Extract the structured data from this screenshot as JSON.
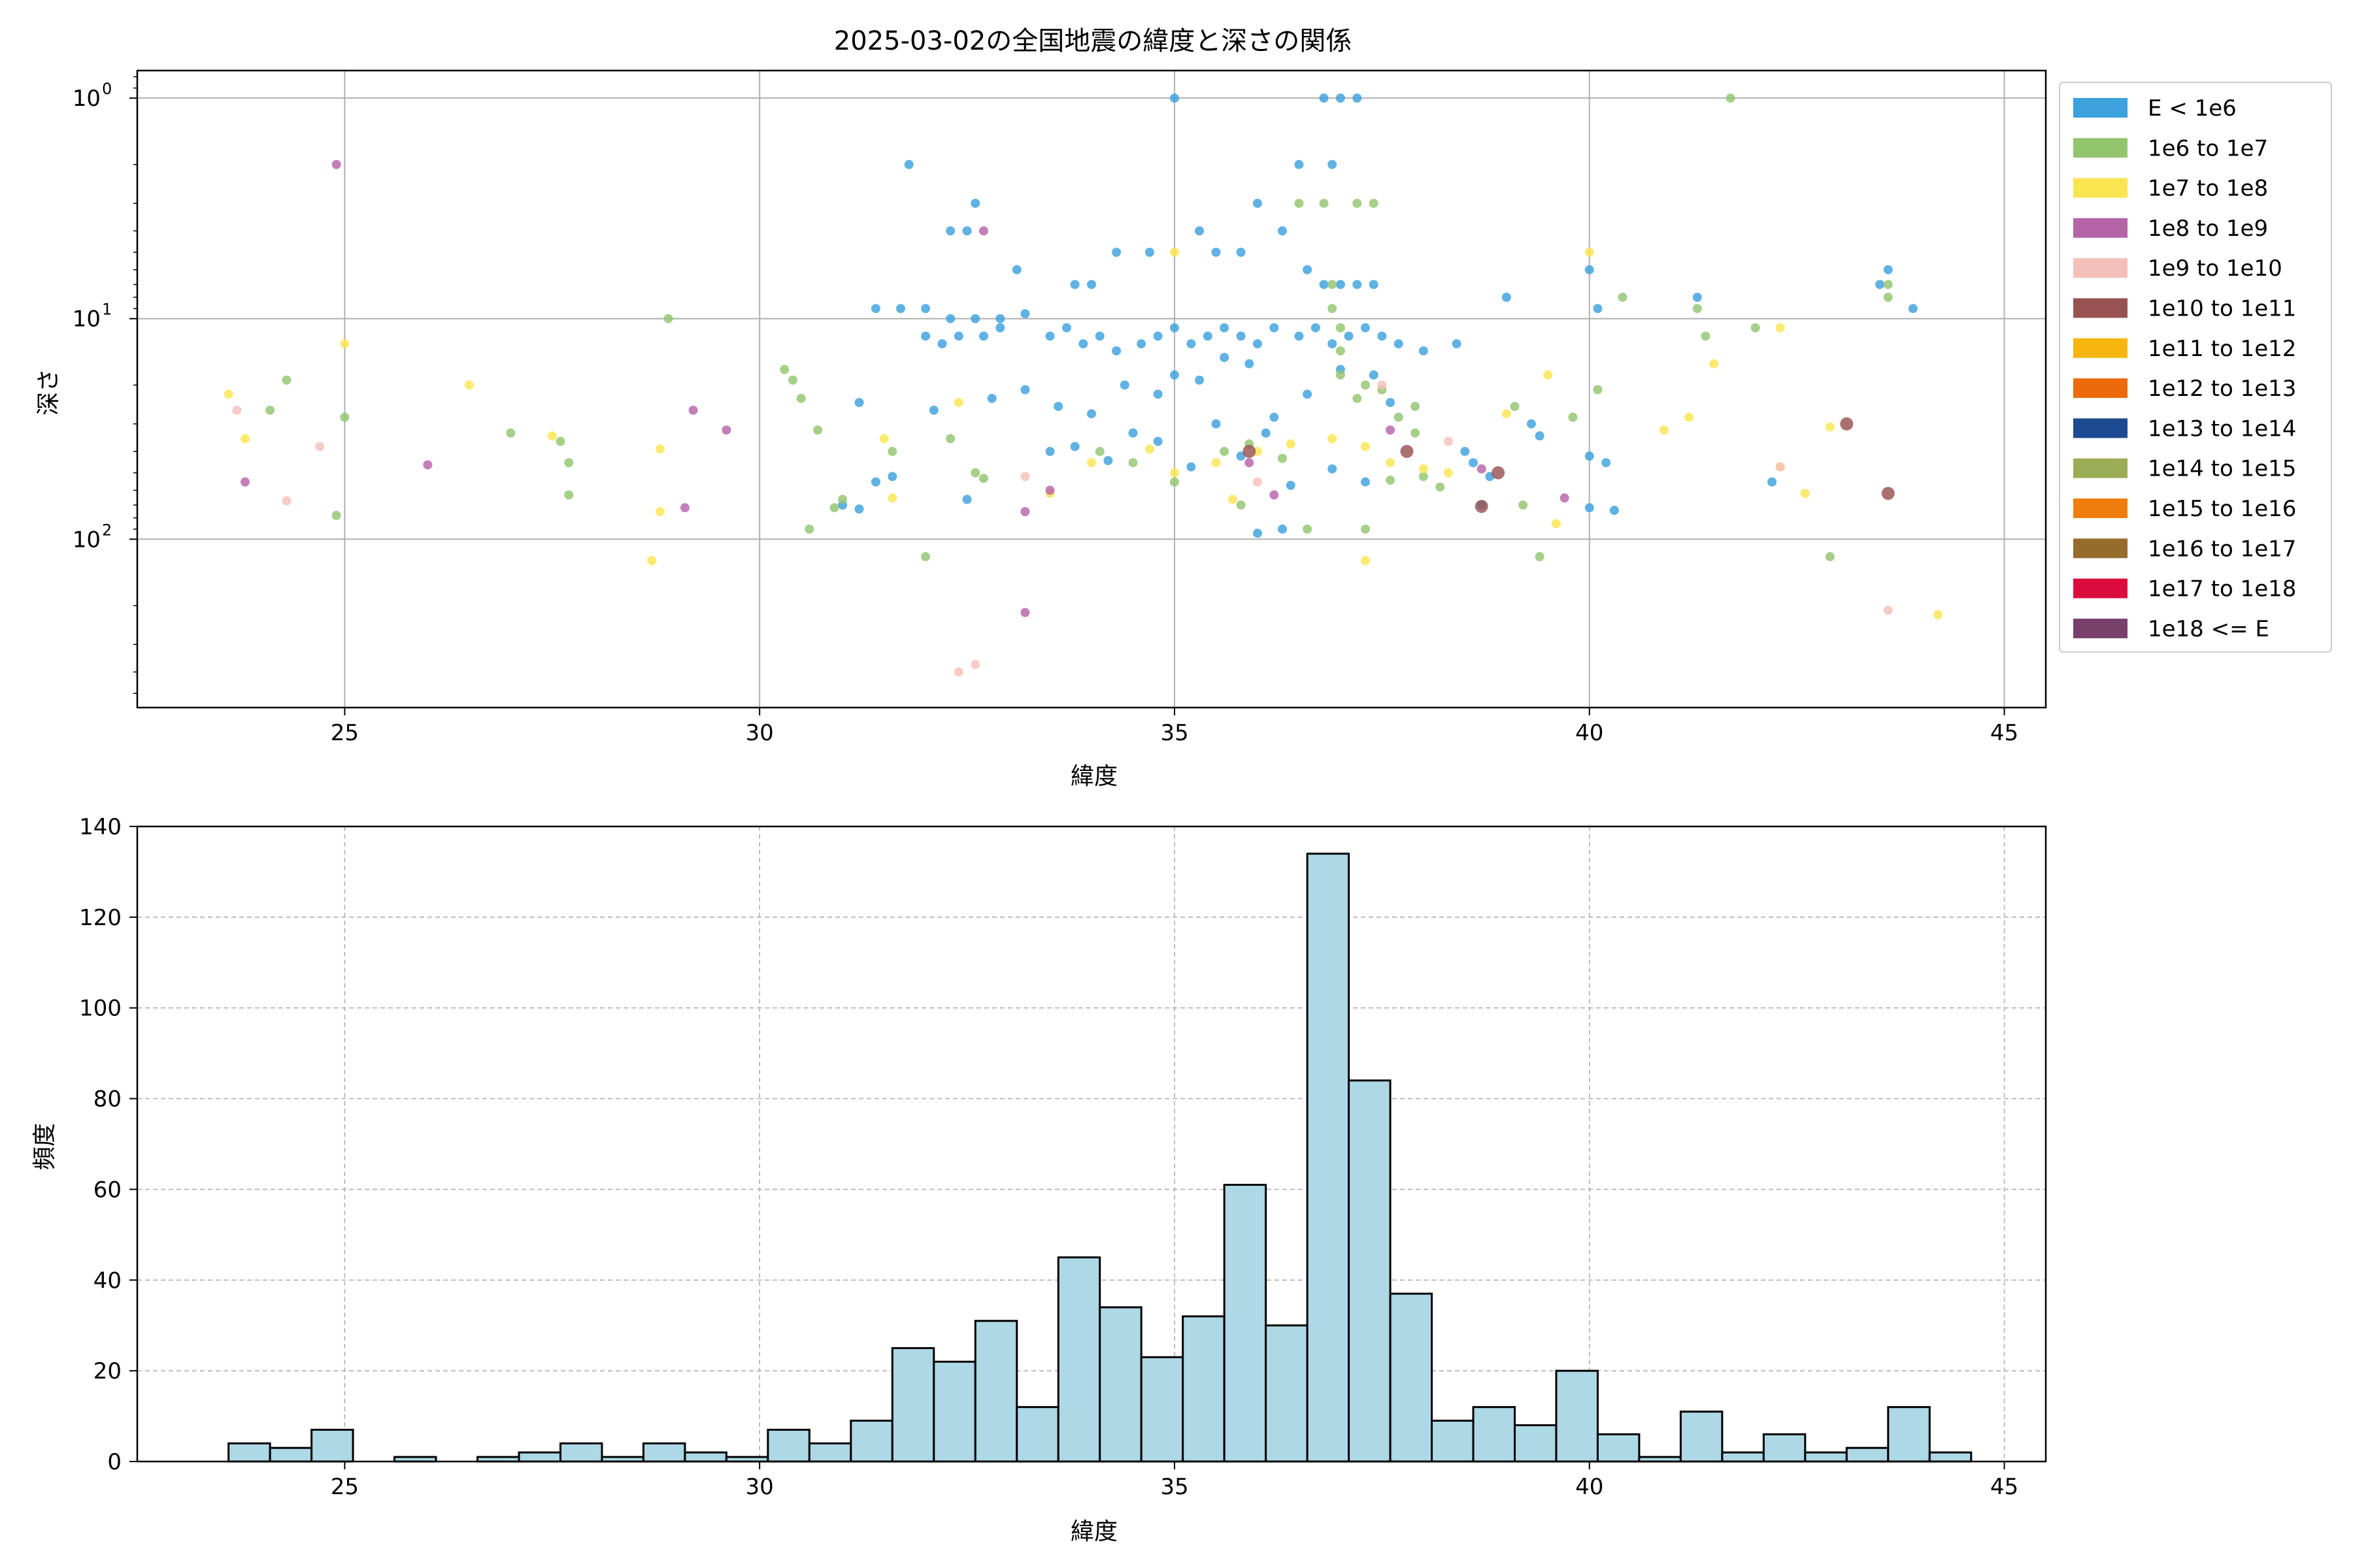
{
  "figure": {
    "title": "2025-03-02の全国地震の緯度と深さの関係"
  },
  "chart_data": [
    {
      "type": "scatter",
      "title": "2025-03-02の全国地震の緯度と深さの関係",
      "xlabel": "緯度",
      "ylabel": "深さ",
      "xlim": [
        22.5,
        45.5
      ],
      "ylim": [
        580,
        0.75
      ],
      "y_scale": "log",
      "y_inverted": true,
      "grid": true,
      "x_ticks": [
        "25",
        "30",
        "35",
        "40",
        "45"
      ],
      "y_ticks": [
        {
          "value": 1,
          "base": "10",
          "exp": "0"
        },
        {
          "value": 10,
          "base": "10",
          "exp": "1"
        },
        {
          "value": 100,
          "base": "10",
          "exp": "2"
        }
      ],
      "legend_position": "outside-right",
      "series": [
        {
          "name": "E < 1e6",
          "color": "#3ca1dd",
          "points": [
            [
              31.8,
              2
            ],
            [
              32.3,
              4
            ],
            [
              32.5,
              4
            ],
            [
              32.6,
              3
            ],
            [
              33.1,
              6
            ],
            [
              31.4,
              9
            ],
            [
              31.7,
              9
            ],
            [
              32.0,
              9
            ],
            [
              32.3,
              10
            ],
            [
              32.6,
              10
            ],
            [
              32.9,
              10
            ],
            [
              33.2,
              9.5
            ],
            [
              33.8,
              7
            ],
            [
              34.0,
              7
            ],
            [
              34.3,
              5
            ],
            [
              34.7,
              5
            ],
            [
              35.0,
              1
            ],
            [
              35.3,
              4
            ],
            [
              35.5,
              5
            ],
            [
              35.8,
              5
            ],
            [
              36.0,
              3
            ],
            [
              36.3,
              4
            ],
            [
              36.5,
              2
            ],
            [
              36.8,
              1
            ],
            [
              37.0,
              1
            ],
            [
              37.2,
              1
            ],
            [
              36.9,
              2
            ],
            [
              36.6,
              6
            ],
            [
              36.8,
              7
            ],
            [
              37.0,
              7
            ],
            [
              37.2,
              7
            ],
            [
              37.4,
              7
            ],
            [
              32.0,
              12
            ],
            [
              32.2,
              13
            ],
            [
              32.4,
              12
            ],
            [
              32.7,
              12
            ],
            [
              32.9,
              11
            ],
            [
              33.5,
              12
            ],
            [
              33.7,
              11
            ],
            [
              33.9,
              13
            ],
            [
              34.1,
              12
            ],
            [
              34.3,
              14
            ],
            [
              34.6,
              13
            ],
            [
              34.8,
              12
            ],
            [
              35.0,
              11
            ],
            [
              35.2,
              13
            ],
            [
              35.4,
              12
            ],
            [
              35.6,
              11
            ],
            [
              35.8,
              12
            ],
            [
              36.0,
              13
            ],
            [
              36.2,
              11
            ],
            [
              36.5,
              12
            ],
            [
              36.7,
              11
            ],
            [
              36.9,
              13
            ],
            [
              37.1,
              12
            ],
            [
              37.3,
              11
            ],
            [
              37.5,
              12
            ],
            [
              37.7,
              13
            ],
            [
              38.0,
              14
            ],
            [
              38.4,
              13
            ],
            [
              39.0,
              8
            ],
            [
              40.0,
              6
            ],
            [
              40.1,
              9
            ],
            [
              41.3,
              8
            ],
            [
              43.6,
              6
            ],
            [
              43.9,
              9
            ],
            [
              31.2,
              24
            ],
            [
              32.1,
              26
            ],
            [
              32.8,
              23
            ],
            [
              33.2,
              21
            ],
            [
              33.6,
              25
            ],
            [
              34.0,
              27
            ],
            [
              34.4,
              20
            ],
            [
              34.8,
              22
            ],
            [
              35.0,
              18
            ],
            [
              35.3,
              19
            ],
            [
              35.6,
              15
            ],
            [
              35.9,
              16
            ],
            [
              36.2,
              28
            ],
            [
              36.6,
              22
            ],
            [
              37.0,
              17
            ],
            [
              37.4,
              18
            ],
            [
              37.6,
              24
            ],
            [
              38.5,
              40
            ],
            [
              38.6,
              45
            ],
            [
              39.3,
              30
            ],
            [
              39.4,
              34
            ],
            [
              40.0,
              42
            ],
            [
              40.2,
              45
            ],
            [
              40.3,
              74
            ],
            [
              31.0,
              70
            ],
            [
              31.4,
              55
            ],
            [
              32.5,
              66
            ],
            [
              33.5,
              40
            ],
            [
              33.8,
              38
            ],
            [
              34.2,
              44
            ],
            [
              34.5,
              33
            ],
            [
              34.8,
              36
            ],
            [
              35.2,
              47
            ],
            [
              35.5,
              30
            ],
            [
              35.8,
              42
            ],
            [
              36.1,
              33
            ],
            [
              36.4,
              57
            ],
            [
              36.9,
              48
            ],
            [
              37.3,
              55
            ],
            [
              38.8,
              52
            ],
            [
              42.2,
              55
            ],
            [
              43.5,
              7
            ],
            [
              36.0,
              94
            ],
            [
              36.3,
              90
            ],
            [
              38.7,
              70
            ],
            [
              40.0,
              72
            ],
            [
              31.2,
              73
            ],
            [
              31.6,
              52
            ]
          ]
        },
        {
          "name": "1e6 to 1e7",
          "color": "#93c56f",
          "points": [
            [
              24.3,
              19
            ],
            [
              24.1,
              26
            ],
            [
              25.0,
              28
            ],
            [
              24.9,
              78
            ],
            [
              28.9,
              10
            ],
            [
              27.0,
              33
            ],
            [
              27.7,
              45
            ],
            [
              27.6,
              36
            ],
            [
              27.7,
              63
            ],
            [
              30.3,
              17
            ],
            [
              30.4,
              19
            ],
            [
              30.5,
              23
            ],
            [
              30.7,
              32
            ],
            [
              30.6,
              90
            ],
            [
              31.0,
              66
            ],
            [
              30.9,
              72
            ],
            [
              32.0,
              120
            ],
            [
              31.6,
              40
            ],
            [
              32.3,
              35
            ],
            [
              32.6,
              50
            ],
            [
              32.7,
              53
            ],
            [
              34.1,
              40
            ],
            [
              34.5,
              45
            ],
            [
              35.0,
              55
            ],
            [
              35.6,
              40
            ],
            [
              35.9,
              37
            ],
            [
              36.3,
              43
            ],
            [
              36.6,
              90
            ],
            [
              36.8,
              3
            ],
            [
              36.5,
              3
            ],
            [
              37.2,
              3
            ],
            [
              37.4,
              3
            ],
            [
              36.9,
              7
            ],
            [
              36.9,
              9
            ],
            [
              37.0,
              11
            ],
            [
              37.0,
              14
            ],
            [
              37.0,
              18
            ],
            [
              37.3,
              20
            ],
            [
              37.2,
              23
            ],
            [
              37.5,
              21
            ],
            [
              37.7,
              28
            ],
            [
              37.9,
              33
            ],
            [
              37.9,
              25
            ],
            [
              38.2,
              58
            ],
            [
              39.1,
              25
            ],
            [
              39.8,
              28
            ],
            [
              40.1,
              21
            ],
            [
              40.4,
              8
            ],
            [
              41.3,
              9
            ],
            [
              41.4,
              12
            ],
            [
              42.0,
              11
            ],
            [
              43.6,
              8
            ],
            [
              43.6,
              7
            ],
            [
              42.9,
              120
            ],
            [
              41.7,
              1
            ],
            [
              39.4,
              120
            ],
            [
              39.2,
              70
            ],
            [
              37.3,
              90
            ],
            [
              37.6,
              54
            ],
            [
              38.0,
              52
            ],
            [
              35.8,
              70
            ]
          ]
        },
        {
          "name": "1e7 to 1e8",
          "color": "#fae550",
          "points": [
            [
              23.6,
              22
            ],
            [
              23.8,
              35
            ],
            [
              25.0,
              13
            ],
            [
              26.5,
              20
            ],
            [
              27.5,
              34
            ],
            [
              28.7,
              125
            ],
            [
              28.8,
              75
            ],
            [
              28.8,
              39
            ],
            [
              31.5,
              35
            ],
            [
              31.6,
              65
            ],
            [
              32.4,
              24
            ],
            [
              33.5,
              62
            ],
            [
              34.0,
              45
            ],
            [
              34.7,
              39
            ],
            [
              35.0,
              50
            ],
            [
              35.5,
              45
            ],
            [
              36.0,
              40
            ],
            [
              36.4,
              37
            ],
            [
              36.9,
              35
            ],
            [
              37.3,
              38
            ],
            [
              37.6,
              45
            ],
            [
              38.0,
              48
            ],
            [
              38.3,
              50
            ],
            [
              39.0,
              27
            ],
            [
              39.5,
              18
            ],
            [
              39.6,
              85
            ],
            [
              40.0,
              5
            ],
            [
              40.9,
              32
            ],
            [
              41.2,
              28
            ],
            [
              41.5,
              16
            ],
            [
              42.3,
              11
            ],
            [
              42.3,
              47
            ],
            [
              42.6,
              62
            ],
            [
              42.9,
              31
            ],
            [
              44.2,
              220
            ],
            [
              37.3,
              125
            ],
            [
              35.7,
              66
            ],
            [
              35.0,
              5
            ]
          ]
        },
        {
          "name": "1e8 to 1e9",
          "color": "#b664a8",
          "points": [
            [
              24.9,
              2
            ],
            [
              23.8,
              55
            ],
            [
              26.0,
              46
            ],
            [
              29.2,
              26
            ],
            [
              29.6,
              32
            ],
            [
              29.1,
              72
            ],
            [
              32.7,
              4
            ],
            [
              33.2,
              75
            ],
            [
              33.2,
              215
            ],
            [
              33.5,
              60
            ],
            [
              35.9,
              45
            ],
            [
              36.2,
              63
            ],
            [
              37.6,
              32
            ],
            [
              38.7,
              48
            ],
            [
              39.7,
              65
            ]
          ]
        },
        {
          "name": "1e9 to 1e10",
          "color": "#f5bfb9",
          "points": [
            [
              23.7,
              26
            ],
            [
              24.3,
              67
            ],
            [
              24.7,
              38
            ],
            [
              32.4,
              400
            ],
            [
              32.6,
              370
            ],
            [
              33.2,
              52
            ],
            [
              36.0,
              55
            ],
            [
              37.5,
              20
            ],
            [
              38.3,
              36
            ],
            [
              42.3,
              47
            ],
            [
              43.6,
              210
            ]
          ]
        },
        {
          "name": "1e10 to 1e11",
          "color": "#985252",
          "points": [
            [
              43.1,
              30
            ],
            [
              43.6,
              62
            ],
            [
              38.7,
              71
            ],
            [
              37.8,
              40
            ],
            [
              35.9,
              40
            ],
            [
              38.9,
              50
            ]
          ]
        }
      ]
    },
    {
      "type": "bar",
      "subtype": "histogram",
      "xlabel": "緯度",
      "ylabel": "頻度",
      "xlim": [
        22.5,
        45.5
      ],
      "ylim": [
        0,
        140
      ],
      "grid": true,
      "bar_color": "#add8e6",
      "x_ticks": [
        "25",
        "30",
        "35",
        "40",
        "45"
      ],
      "y_ticks": [
        "0",
        "20",
        "40",
        "60",
        "80",
        "100",
        "120",
        "140"
      ],
      "bin_start": 23.6,
      "bin_width": 0.5,
      "counts": [
        4,
        3,
        7,
        0,
        1,
        0,
        1,
        2,
        4,
        1,
        4,
        2,
        1,
        7,
        4,
        9,
        25,
        22,
        31,
        12,
        45,
        34,
        23,
        32,
        61,
        30,
        134,
        84,
        37,
        9,
        12,
        8,
        20,
        6,
        1,
        11,
        2,
        6,
        2,
        3,
        12,
        2
      ]
    }
  ],
  "legend": [
    {
      "label": "E < 1e6",
      "color": "#3ca1dd"
    },
    {
      "label": "1e6 to 1e7",
      "color": "#93c56f"
    },
    {
      "label": "1e7 to 1e8",
      "color": "#fae550"
    },
    {
      "label": "1e8 to 1e9",
      "color": "#b664a8"
    },
    {
      "label": "1e9 to 1e10",
      "color": "#f5bfb9"
    },
    {
      "label": "1e10 to 1e11",
      "color": "#985252"
    },
    {
      "label": "1e11 to 1e12",
      "color": "#f6b50f"
    },
    {
      "label": "1e12 to 1e13",
      "color": "#ec6a0b"
    },
    {
      "label": "1e13 to 1e14",
      "color": "#1d4b92"
    },
    {
      "label": "1e14 to 1e15",
      "color": "#9aad54"
    },
    {
      "label": "1e15 to 1e16",
      "color": "#ee7d0d"
    },
    {
      "label": "1e16 to 1e17",
      "color": "#976b2c"
    },
    {
      "label": "1e17 to 1e18",
      "color": "#dc0b3e"
    },
    {
      "label": "1e18 <= E",
      "color": "#79406c"
    }
  ]
}
